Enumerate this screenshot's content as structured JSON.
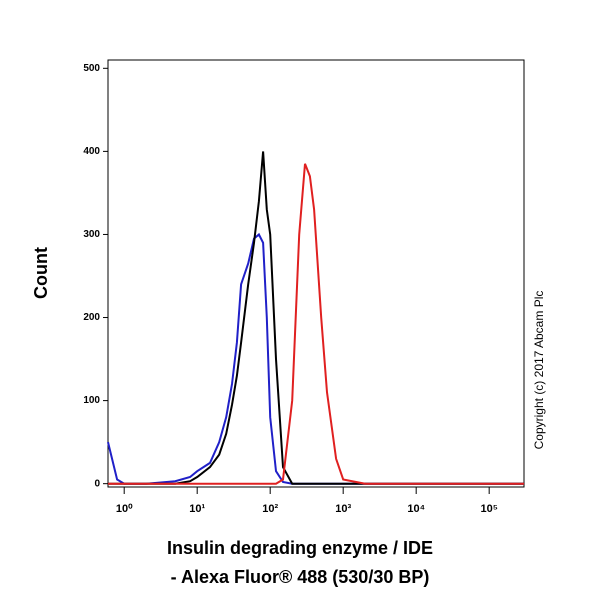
{
  "chart_data": {
    "type": "line",
    "ylabel": "Count",
    "xlabel": [
      "Insulin degrading enzyme / IDE",
      "- Alexa Fluor® 488 (530/30 BP)"
    ],
    "annotation": "Copyright (c) 2017 Abcam Plc",
    "xscale": "log",
    "xlim": [
      0.6,
      300000
    ],
    "ylim": [
      -4,
      510
    ],
    "xticks": [
      {
        "value": 1,
        "label": "10⁰"
      },
      {
        "value": 10,
        "label": "10¹"
      },
      {
        "value": 100,
        "label": "10²"
      },
      {
        "value": 1000,
        "label": "10³"
      },
      {
        "value": 10000,
        "label": "10⁴"
      },
      {
        "value": 100000,
        "label": "10⁵"
      }
    ],
    "yticks": [
      0,
      100,
      200,
      300,
      400,
      500
    ],
    "x": [
      0.6,
      0.8,
      1,
      2,
      5,
      8,
      10,
      15,
      20,
      25,
      30,
      35,
      40,
      50,
      60,
      70,
      80,
      90,
      100,
      120,
      150,
      200,
      250,
      300,
      350,
      400,
      500,
      600,
      800,
      1000,
      2000,
      10000,
      100000,
      300000
    ],
    "series": [
      {
        "color": "#2020c8",
        "values": [
          50,
          5,
          0,
          0,
          3,
          8,
          15,
          25,
          50,
          80,
          120,
          170,
          240,
          265,
          295,
          300,
          290,
          200,
          80,
          15,
          2,
          0,
          0,
          0,
          0,
          0,
          0,
          0,
          0,
          0,
          0,
          0,
          0,
          0
        ]
      },
      {
        "color": "#000000",
        "values": [
          0,
          0,
          0,
          0,
          0,
          3,
          8,
          20,
          35,
          60,
          95,
          130,
          170,
          240,
          290,
          340,
          400,
          330,
          300,
          150,
          20,
          0,
          0,
          0,
          0,
          0,
          0,
          0,
          0,
          0,
          0,
          0,
          0,
          0
        ]
      },
      {
        "color": "#e02020",
        "values": [
          0,
          0,
          0,
          0,
          0,
          0,
          0,
          0,
          0,
          0,
          0,
          0,
          0,
          0,
          0,
          0,
          0,
          0,
          0,
          0,
          5,
          100,
          300,
          385,
          370,
          330,
          200,
          110,
          30,
          5,
          0,
          0,
          0,
          0
        ]
      }
    ]
  }
}
